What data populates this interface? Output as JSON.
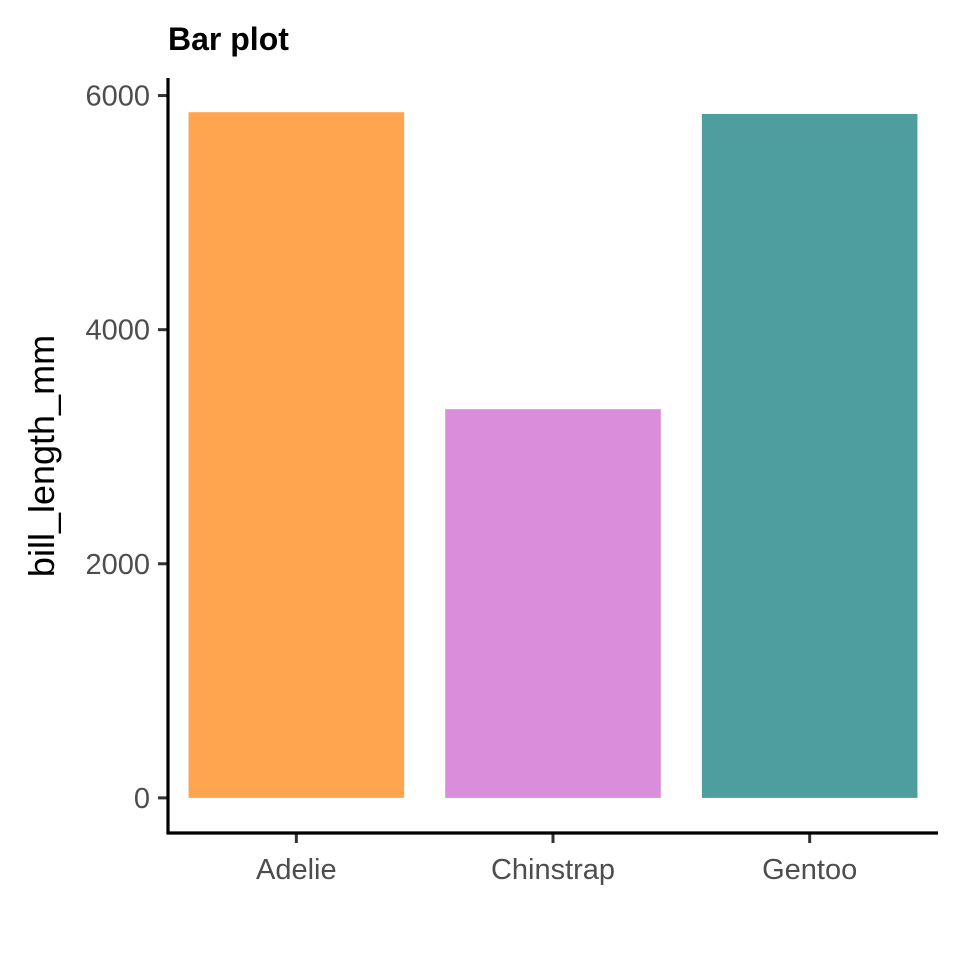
{
  "chart_data": {
    "type": "bar",
    "title": "Bar plot",
    "xlabel": "",
    "ylabel": "bill_length_mm",
    "categories": [
      "Adelie",
      "Chinstrap",
      "Gentoo"
    ],
    "values": [
      5858,
      3321,
      5843
    ],
    "colors": [
      "#FFA54F",
      "#DA8DDA",
      "#4F9E9E"
    ],
    "ylim": [
      -300,
      6150
    ],
    "yticks": [
      0,
      2000,
      4000,
      6000
    ],
    "ytick_labels": [
      "0",
      "2000",
      "4000",
      "6000"
    ],
    "grid": false,
    "legend": "none"
  }
}
